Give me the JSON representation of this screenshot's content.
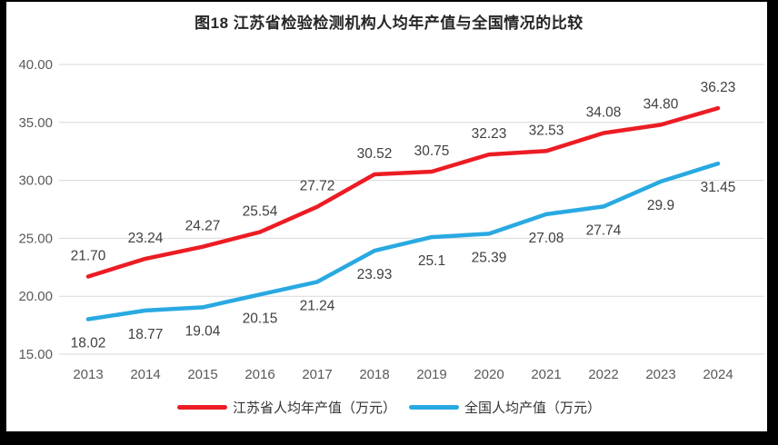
{
  "page": {
    "kind": "document-embedded-chart"
  },
  "chart_data": {
    "type": "line",
    "title": "图18  江苏省检验检测机构人均年产值与全国情况的比较",
    "categories": [
      "2013",
      "2014",
      "2015",
      "2016",
      "2017",
      "2018",
      "2019",
      "2020",
      "2021",
      "2022",
      "2023",
      "2024"
    ],
    "series": [
      {
        "name": "江苏省人均年产值（万元）",
        "color": "#ec1c24",
        "label_position": "above",
        "values": [
          21.7,
          23.24,
          24.27,
          25.54,
          27.72,
          30.52,
          30.75,
          32.23,
          32.53,
          34.08,
          34.8,
          36.23
        ],
        "labels": [
          "21.70",
          "23.24",
          "24.27",
          "25.54",
          "27.72",
          "30.52",
          "30.75",
          "32.23",
          "32.53",
          "34.08",
          "34.80",
          "36.23"
        ]
      },
      {
        "name": "全国人均产值（万元）",
        "color": "#29a9e1",
        "label_position": "below",
        "values": [
          18.02,
          18.77,
          19.04,
          20.15,
          21.24,
          23.93,
          25.1,
          25.39,
          27.08,
          27.74,
          29.9,
          31.45
        ],
        "labels": [
          "18.02",
          "18.77",
          "19.04",
          "20.15",
          "21.24",
          "23.93",
          "25.1",
          "25.39",
          "27.08",
          "27.74",
          "29.9",
          "31.45"
        ]
      }
    ],
    "ylim": [
      15,
      40
    ],
    "ytick_step": 5,
    "ytick_labels": [
      "15.00",
      "20.00",
      "25.00",
      "30.00",
      "35.00",
      "40.00"
    ],
    "grid": "horizontal-only",
    "legend_position": "bottom",
    "style": {
      "grid_color": "#d9d9d9",
      "axis_text_color": "#595959",
      "data_label_color": "#404040",
      "line_width": 4.5
    }
  }
}
